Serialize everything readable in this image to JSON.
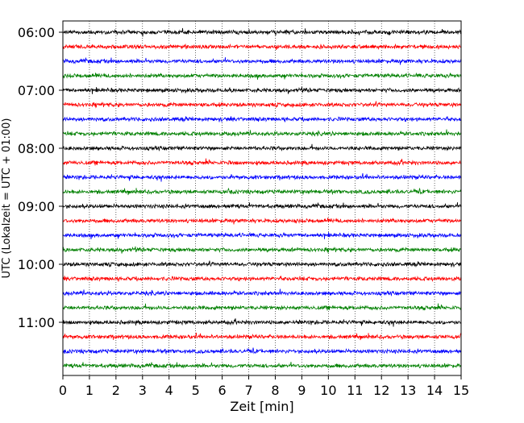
{
  "chart_data": {
    "type": "line",
    "title": "",
    "xlabel": "Zeit  [min]",
    "ylabel": "UTC (Lokalzeit = UTC + 01:00)",
    "xlim": [
      0,
      15
    ],
    "x_ticks": [
      0,
      1,
      2,
      3,
      4,
      5,
      6,
      7,
      8,
      9,
      10,
      11,
      12,
      13,
      14,
      15
    ],
    "y_tick_labels": [
      "06:00",
      "07:00",
      "08:00",
      "09:00",
      "10:00",
      "11:00"
    ],
    "grid": "vertical dotted lines at each minute",
    "legend": "none",
    "trace_colors": [
      "#000000",
      "#ff0000",
      "#0000ff",
      "#008000"
    ],
    "series": [
      {
        "start": "06:00",
        "color": "#000000"
      },
      {
        "start": "06:15",
        "color": "#ff0000"
      },
      {
        "start": "06:30",
        "color": "#0000ff"
      },
      {
        "start": "06:45",
        "color": "#008000"
      },
      {
        "start": "07:00",
        "color": "#000000"
      },
      {
        "start": "07:15",
        "color": "#ff0000"
      },
      {
        "start": "07:30",
        "color": "#0000ff"
      },
      {
        "start": "07:45",
        "color": "#008000"
      },
      {
        "start": "08:00",
        "color": "#000000"
      },
      {
        "start": "08:15",
        "color": "#ff0000"
      },
      {
        "start": "08:30",
        "color": "#0000ff"
      },
      {
        "start": "08:45",
        "color": "#008000"
      },
      {
        "start": "09:00",
        "color": "#000000"
      },
      {
        "start": "09:15",
        "color": "#ff0000"
      },
      {
        "start": "09:30",
        "color": "#0000ff"
      },
      {
        "start": "09:45",
        "color": "#008000"
      },
      {
        "start": "10:00",
        "color": "#000000"
      },
      {
        "start": "10:15",
        "color": "#ff0000"
      },
      {
        "start": "10:30",
        "color": "#0000ff"
      },
      {
        "start": "10:45",
        "color": "#008000"
      },
      {
        "start": "11:00",
        "color": "#000000"
      },
      {
        "start": "11:15",
        "color": "#ff0000"
      },
      {
        "start": "11:30",
        "color": "#0000ff"
      },
      {
        "start": "11:45",
        "color": "#008000"
      }
    ]
  }
}
